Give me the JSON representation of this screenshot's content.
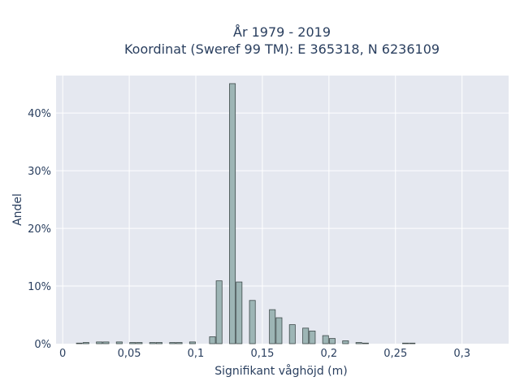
{
  "chart_data": {
    "type": "bar",
    "title_line1": "År 1979 - 2019",
    "title_line2": "Koordinat (Sweref 99 TM): E 365318, N 6236109",
    "xlabel": "Signifikant våghöjd (m)",
    "ylabel": "Andel",
    "xlim": [
      -0.005,
      0.335
    ],
    "ylim": [
      0,
      0.465
    ],
    "grid": true,
    "x_ticks": [
      {
        "value": 0,
        "label": "0"
      },
      {
        "value": 0.05,
        "label": "0,05"
      },
      {
        "value": 0.1,
        "label": "0,1"
      },
      {
        "value": 0.15,
        "label": "0,15"
      },
      {
        "value": 0.2,
        "label": "0,2"
      },
      {
        "value": 0.25,
        "label": "0,25"
      },
      {
        "value": 0.3,
        "label": "0,3"
      }
    ],
    "y_ticks": [
      {
        "value": 0,
        "label": "0%"
      },
      {
        "value": 0.1,
        "label": "10%"
      },
      {
        "value": 0.2,
        "label": "20%"
      },
      {
        "value": 0.3,
        "label": "30%"
      },
      {
        "value": 0.4,
        "label": "40%"
      }
    ],
    "bin_width": 0.005,
    "bins": [
      {
        "x": 0.0125,
        "y": 0.001
      },
      {
        "x": 0.0175,
        "y": 0.002
      },
      {
        "x": 0.0275,
        "y": 0.003
      },
      {
        "x": 0.0325,
        "y": 0.003
      },
      {
        "x": 0.0425,
        "y": 0.003
      },
      {
        "x": 0.0525,
        "y": 0.002
      },
      {
        "x": 0.0575,
        "y": 0.002
      },
      {
        "x": 0.0675,
        "y": 0.002
      },
      {
        "x": 0.0725,
        "y": 0.002
      },
      {
        "x": 0.0825,
        "y": 0.002
      },
      {
        "x": 0.0875,
        "y": 0.002
      },
      {
        "x": 0.0975,
        "y": 0.003
      },
      {
        "x": 0.1125,
        "y": 0.012
      },
      {
        "x": 0.1175,
        "y": 0.109
      },
      {
        "x": 0.1275,
        "y": 0.451
      },
      {
        "x": 0.1325,
        "y": 0.107
      },
      {
        "x": 0.1425,
        "y": 0.075
      },
      {
        "x": 0.1575,
        "y": 0.059
      },
      {
        "x": 0.1625,
        "y": 0.045
      },
      {
        "x": 0.1725,
        "y": 0.033
      },
      {
        "x": 0.1825,
        "y": 0.027
      },
      {
        "x": 0.1875,
        "y": 0.022
      },
      {
        "x": 0.1975,
        "y": 0.014
      },
      {
        "x": 0.2025,
        "y": 0.009
      },
      {
        "x": 0.2125,
        "y": 0.005
      },
      {
        "x": 0.2225,
        "y": 0.002
      },
      {
        "x": 0.2275,
        "y": 0.001
      },
      {
        "x": 0.2575,
        "y": 0.001
      },
      {
        "x": 0.2625,
        "y": 0.001
      }
    ],
    "colors": {
      "plot_bg": "#e5e8f0",
      "grid": "#ffffff",
      "bar_fill": "#9db5b5",
      "bar_stroke": "#3e4a4a",
      "text": "#2a3f5f"
    }
  }
}
